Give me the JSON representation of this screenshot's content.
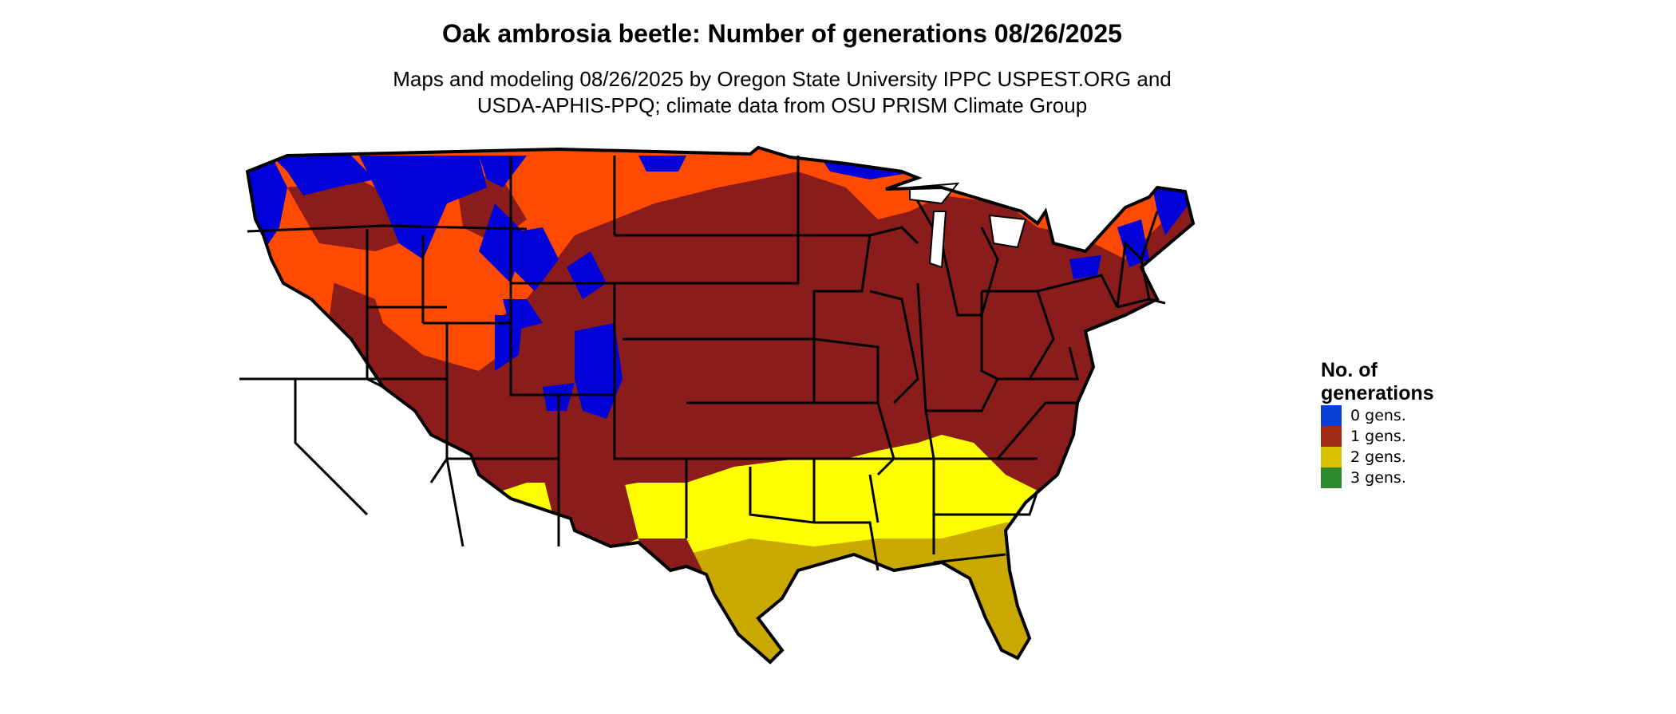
{
  "title": "Oak ambrosia beetle: Number of generations 08/26/2025",
  "subtitle_line1": "Maps and modeling 08/26/2025 by Oregon State University IPPC USPEST.ORG and",
  "subtitle_line2": "USDA-APHIS-PPQ; climate data from OSU PRISM Climate Group",
  "legend": {
    "title_line1": "No. of",
    "title_line2": "generations",
    "items": [
      {
        "label": "0 gens.",
        "color": "#0a3fd6"
      },
      {
        "label": "1 gens.",
        "color": "#9e2a17"
      },
      {
        "label": "2 gens.",
        "color": "#d9c000"
      },
      {
        "label": "3 gens.",
        "color": "#2b8a2b"
      }
    ]
  },
  "map_colors": {
    "zero_gens": "#0000d8",
    "one_gens_dark": "#8b1c1c",
    "one_gens_light": "#ff4a00",
    "two_gens_bright": "#ffff00",
    "two_gens_dark": "#c9a800",
    "boundary": "#000000"
  }
}
